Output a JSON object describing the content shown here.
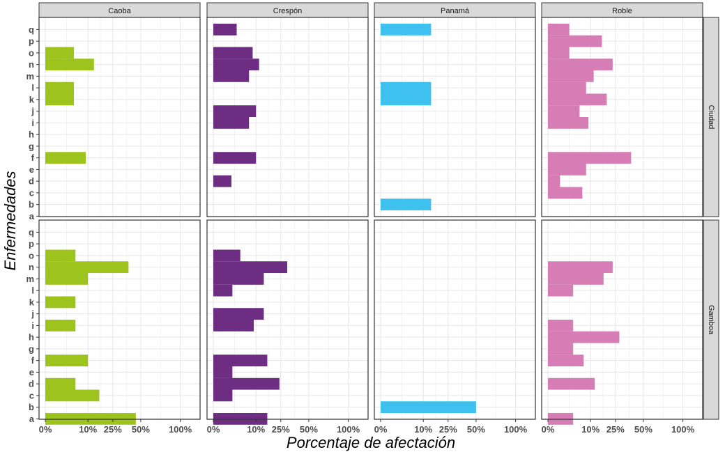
{
  "chart_data": {
    "type": "bar",
    "orientation": "horizontal",
    "xlabel": "Porcentaje de afectación",
    "ylabel": "Enfermedades",
    "x_tick_labels": [
      "0%",
      "10%",
      "25%",
      "50%",
      "100%"
    ],
    "x_scale": "sqrt",
    "grid": true,
    "categories": [
      "a",
      "b",
      "c",
      "d",
      "e",
      "f",
      "g",
      "h",
      "i",
      "j",
      "k",
      "l",
      "m",
      "n",
      "o",
      "p",
      "q"
    ],
    "facet_columns": [
      "Caoba",
      "Crespón",
      "Panamá",
      "Roble"
    ],
    "facet_rows": [
      "Ciudad",
      "Gamboa"
    ],
    "colors": {
      "Caoba": "#9dc31d",
      "Crespón": "#6c2d83",
      "Panamá": "#3ec1ee",
      "Roble": "#d67db5"
    },
    "panels": [
      {
        "row": "Ciudad",
        "column": "Caoba",
        "values": {
          "f": 9,
          "k": 4.5,
          "l": 4.5,
          "n": 13,
          "o": 4.5
        }
      },
      {
        "row": "Ciudad",
        "column": "Crespón",
        "values": {
          "d": 1.8,
          "f": 10,
          "i": 7,
          "j": 10,
          "m": 7,
          "n": 11.5,
          "o": 8.5,
          "q": 3
        }
      },
      {
        "row": "Ciudad",
        "column": "Panamá",
        "values": {
          "b": 14,
          "k": 14,
          "l": 14,
          "q": 14
        }
      },
      {
        "row": "Ciudad",
        "column": "Roble",
        "values": {
          "c": 6.5,
          "d": 0.8,
          "e": 8,
          "f": 38,
          "i": 9,
          "j": 5.5,
          "k": 19,
          "l": 8,
          "m": 11.5,
          "n": 23,
          "o": 2.5,
          "p": 16,
          "q": 2.5
        }
      },
      {
        "row": "Gamboa",
        "column": "Caoba",
        "values": {
          "a": 45,
          "c": 16,
          "d": 5,
          "f": 10,
          "i": 5,
          "k": 5,
          "m": 10,
          "n": 38,
          "o": 5
        }
      },
      {
        "row": "Gamboa",
        "column": "Crespón",
        "values": {
          "a": 16,
          "c": 2,
          "d": 24,
          "e": 2,
          "f": 16,
          "i": 9,
          "j": 14,
          "l": 2,
          "m": 14,
          "n": 30,
          "o": 4
        }
      },
      {
        "row": "Gamboa",
        "column": "Panamá",
        "values": {
          "b": 50
        }
      },
      {
        "row": "Gamboa",
        "column": "Roble",
        "values": {
          "a": 3.5,
          "d": 12,
          "f": 7,
          "g": 3.5,
          "h": 28,
          "i": 3.5,
          "l": 3.5,
          "m": 17,
          "n": 23
        }
      }
    ]
  }
}
